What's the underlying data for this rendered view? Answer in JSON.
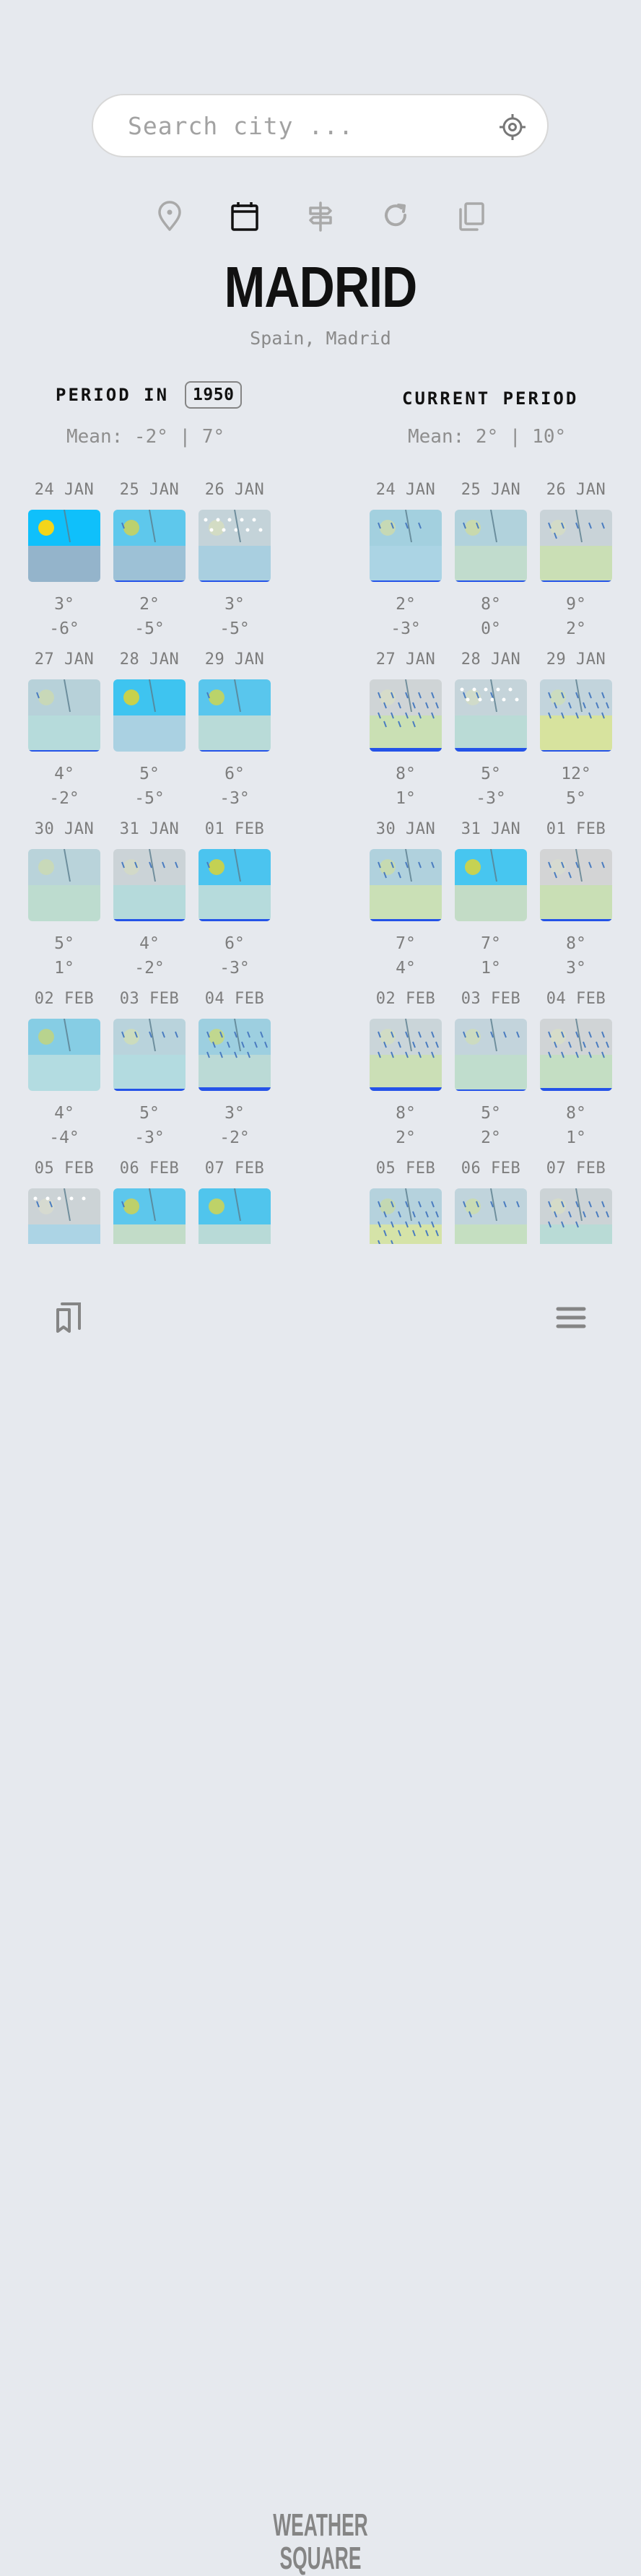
{
  "search": {
    "placeholder": "Search city ...",
    "value": ""
  },
  "nav_icons": [
    {
      "name": "location-pin-icon",
      "active": false
    },
    {
      "name": "calendar-icon",
      "active": true
    },
    {
      "name": "signpost-icon",
      "active": false
    },
    {
      "name": "refresh-icon",
      "active": false
    },
    {
      "name": "copy-icon",
      "active": false
    }
  ],
  "city": {
    "name": "MADRID",
    "region": "Spain, Madrid"
  },
  "left": {
    "heading": "PERIOD IN",
    "year": "1950",
    "mean": "Mean: -2° | 7°",
    "days": [
      {
        "date": "24 JAN",
        "high": "3°",
        "low": "-6°",
        "sky": "#0fc0fb",
        "ground": "#94b4cb",
        "sun": "#f3d51a",
        "rain": 0,
        "snow": 0,
        "bar": 0
      },
      {
        "date": "25 JAN",
        "high": "2°",
        "low": "-5°",
        "sky": "#5ec8ec",
        "ground": "#9dc1d6",
        "sun": "#bcd16e",
        "rain": 1,
        "snow": 0,
        "bar": 2
      },
      {
        "date": "26 JAN",
        "high": "3°",
        "low": "-5°",
        "sky": "#c4d3d9",
        "ground": "#a9cfe0",
        "sun": "#d3dcc4",
        "rain": 0,
        "snow": 2,
        "bar": 2
      },
      {
        "date": "27 JAN",
        "high": "4°",
        "low": "-2°",
        "sky": "#b7d1d9",
        "ground": "#b6dbdb",
        "sun": "#c8d8b8",
        "rain": 1,
        "snow": 0,
        "bar": 2
      },
      {
        "date": "28 JAN",
        "high": "5°",
        "low": "-5°",
        "sky": "#3ec4f0",
        "ground": "#aad1e2",
        "sun": "#c8d14b",
        "rain": 0,
        "snow": 0,
        "bar": 0
      },
      {
        "date": "29 JAN",
        "high": "6°",
        "low": "-3°",
        "sky": "#59c6ed",
        "ground": "#b9dbd8",
        "sun": "#bad36a",
        "rain": 1,
        "snow": 0,
        "bar": 2
      },
      {
        "date": "30 JAN",
        "high": "5°",
        "low": "1°",
        "sky": "#b9d3da",
        "ground": "#bddccf",
        "sun": "#c8d9b9",
        "rain": 0,
        "snow": 0,
        "bar": 0
      },
      {
        "date": "31 JAN",
        "high": "4°",
        "low": "-2°",
        "sky": "#cbd3d7",
        "ground": "#b5dadb",
        "sun": "#d2d9c8",
        "rain": 5,
        "snow": 0,
        "bar": 3
      },
      {
        "date": "01 FEB",
        "high": "6°",
        "low": "-3°",
        "sky": "#4bc4ef",
        "ground": "#b6dbdc",
        "sun": "#c3d153",
        "rain": 1,
        "snow": 0,
        "bar": 3
      },
      {
        "date": "02 FEB",
        "high": "4°",
        "low": "-4°",
        "sky": "#86cde4",
        "ground": "#b3dce1",
        "sun": "#b8d38e",
        "rain": 0,
        "snow": 0,
        "bar": 0
      },
      {
        "date": "03 FEB",
        "high": "5°",
        "low": "-3°",
        "sky": "#b9d3dc",
        "ground": "#b3dbe0",
        "sun": "#ccdcbd",
        "rain": 5,
        "snow": 0,
        "bar": 3
      },
      {
        "date": "04 FEB",
        "high": "3°",
        "low": "-2°",
        "sky": "#9dcfe0",
        "ground": "#bbdad6",
        "sun": "#c0d78f",
        "rain": 14,
        "snow": 0,
        "bar": 5
      },
      {
        "date": "05 FEB",
        "high": "",
        "low": "",
        "sky": "#ccd3d6",
        "ground": "#acd4e5",
        "sun": "#d6dad0",
        "rain": 2,
        "snow": 1,
        "bar": 0
      },
      {
        "date": "06 FEB",
        "high": "",
        "low": "",
        "sky": "#5dc7ec",
        "ground": "#c2dcc8",
        "sun": "#bdd06a",
        "rain": 1,
        "snow": 0,
        "bar": 0
      },
      {
        "date": "07 FEB",
        "high": "",
        "low": "",
        "sky": "#50c5ed",
        "ground": "#b8dad7",
        "sun": "#bed268",
        "rain": 0,
        "snow": 0,
        "bar": 0
      }
    ]
  },
  "right": {
    "heading": "CURRENT PERIOD",
    "mean": "Mean: 2° | 10°",
    "days": [
      {
        "date": "24 JAN",
        "high": "2°",
        "low": "-3°",
        "sky": "#a3d0df",
        "ground": "#abd4e4",
        "sun": "#c6d9b5",
        "rain": 4,
        "snow": 0,
        "bar": 2
      },
      {
        "date": "25 JAN",
        "high": "8°",
        "low": "0°",
        "sky": "#b1d2dc",
        "ground": "#c1dccd",
        "sun": "#c8d9ad",
        "rain": 2,
        "snow": 0,
        "bar": 2
      },
      {
        "date": "26 JAN",
        "high": "9°",
        "low": "2°",
        "sky": "#c9d3d8",
        "ground": "#cadfb5",
        "sun": "#d3dbc7",
        "rain": 6,
        "snow": 0,
        "bar": 2
      },
      {
        "date": "27 JAN",
        "high": "8°",
        "low": "1°",
        "sky": "#cfd4d6",
        "ground": "#cae0b4",
        "sun": "#d6dcc9",
        "rain": 18,
        "snow": 0,
        "bar": 5
      },
      {
        "date": "28 JAN",
        "high": "5°",
        "low": "-3°",
        "sky": "#c5d4da",
        "ground": "#badbd6",
        "sun": "#d0dbc9",
        "rain": 3,
        "snow": 2,
        "bar": 5
      },
      {
        "date": "29 JAN",
        "high": "12°",
        "low": "5°",
        "sky": "#c2d4dc",
        "ground": "#d7e39e",
        "sun": "#cbdcbf",
        "rain": 15,
        "snow": 0,
        "bar": 2
      },
      {
        "date": "30 JAN",
        "high": "7°",
        "low": "4°",
        "sky": "#b0d1dd",
        "ground": "#cae0b6",
        "sun": "#c6dab1",
        "rain": 7,
        "snow": 0,
        "bar": 3
      },
      {
        "date": "31 JAN",
        "high": "7°",
        "low": "1°",
        "sky": "#47c6f0",
        "ground": "#c3dcc6",
        "sun": "#c6d253",
        "rain": 0,
        "snow": 0,
        "bar": 0
      },
      {
        "date": "01 FEB",
        "high": "8°",
        "low": "3°",
        "sky": "#d3d4d5",
        "ground": "#c9dfb5",
        "sun": "#d6dad0",
        "rain": 7,
        "snow": 0,
        "bar": 3
      },
      {
        "date": "02 FEB",
        "high": "8°",
        "low": "2°",
        "sky": "#cad5d9",
        "ground": "#cbdfb6",
        "sun": "#d1dcc5",
        "rain": 15,
        "snow": 0,
        "bar": 5
      },
      {
        "date": "03 FEB",
        "high": "5°",
        "low": "2°",
        "sky": "#c3d4dc",
        "ground": "#c0ddcd",
        "sun": "#ccdbc0",
        "rain": 5,
        "snow": 0,
        "bar": 2
      },
      {
        "date": "04 FEB",
        "high": "8°",
        "low": "1°",
        "sky": "#d0d4d6",
        "ground": "#c4dec3",
        "sun": "#d6dcc9",
        "rain": 15,
        "snow": 0,
        "bar": 4
      },
      {
        "date": "05 FEB",
        "high": "",
        "low": "",
        "sky": "#b5d2dd",
        "ground": "#d5e3a8",
        "sun": "#c3d8b2",
        "rain": 22,
        "snow": 0,
        "bar": 0
      },
      {
        "date": "06 FEB",
        "high": "",
        "low": "",
        "sky": "#c0d4dc",
        "ground": "#c5dfc1",
        "sun": "#c9dbb4",
        "rain": 6,
        "snow": 0,
        "bar": 0
      },
      {
        "date": "07 FEB",
        "high": "",
        "low": "",
        "sky": "#ccd3d6",
        "ground": "#b9dbd6",
        "sun": "#d5dbc8",
        "rain": 13,
        "snow": 0,
        "bar": 0
      }
    ]
  },
  "colors": {
    "background": "#e6e9ee",
    "precip_bar": "#2453e8",
    "rain_streak": "#4a7cc0",
    "active_icon": "#111111",
    "inactive_icon": "#a9a9a9"
  },
  "footer": {
    "logo_line1": "WEATHER",
    "logo_line2": "SQUARE",
    "left_icon": "bookmarks-icon",
    "right_icon": "menu-icon"
  }
}
